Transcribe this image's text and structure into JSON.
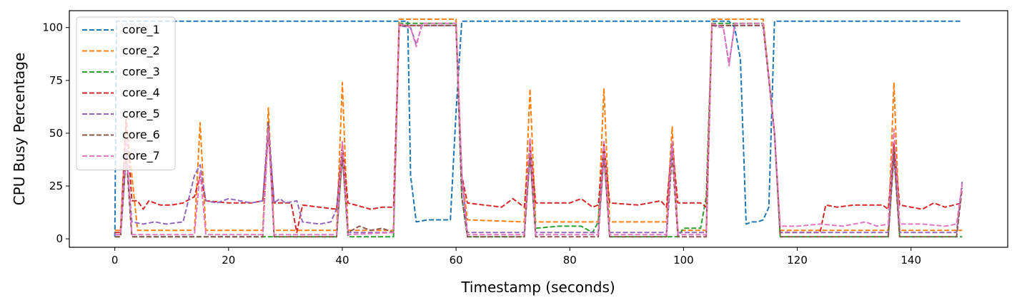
{
  "chart_data": {
    "type": "line",
    "title": "",
    "xlabel": "Timestamp (seconds)",
    "ylabel": "CPU Busy Percentage",
    "xlim": [
      -8,
      157
    ],
    "ylim": [
      -4,
      108
    ],
    "xticks": [
      0,
      20,
      40,
      60,
      80,
      100,
      120,
      140
    ],
    "yticks": [
      0,
      25,
      50,
      75,
      100
    ],
    "grid": false,
    "legend": "top-left",
    "series": [
      {
        "name": "core_1",
        "color": "#1f77b4",
        "linestyle": "dashed",
        "points": [
          [
            0,
            1
          ],
          [
            0.3,
            103
          ],
          [
            50,
            103
          ],
          [
            51.5,
            103
          ],
          [
            52,
            30
          ],
          [
            53,
            8
          ],
          [
            55,
            9
          ],
          [
            59,
            9
          ],
          [
            60,
            60
          ],
          [
            61,
            103
          ],
          [
            108,
            103
          ],
          [
            109,
            100
          ],
          [
            110,
            85
          ],
          [
            111,
            7
          ],
          [
            112,
            8
          ],
          [
            113,
            8
          ],
          [
            114,
            9
          ],
          [
            115,
            15
          ],
          [
            116,
            103
          ],
          [
            149,
            103
          ]
        ]
      },
      {
        "name": "core_2",
        "color": "#ff7f0e",
        "linestyle": "dashed",
        "points": [
          [
            0,
            4
          ],
          [
            1,
            4
          ],
          [
            2,
            55
          ],
          [
            3,
            30
          ],
          [
            4,
            4
          ],
          [
            14,
            4
          ],
          [
            15,
            55
          ],
          [
            16,
            4
          ],
          [
            26,
            4
          ],
          [
            27,
            62
          ],
          [
            28,
            4
          ],
          [
            39,
            4
          ],
          [
            40,
            74
          ],
          [
            41,
            4
          ],
          [
            49,
            4
          ],
          [
            50,
            104
          ],
          [
            60,
            104
          ],
          [
            61,
            30
          ],
          [
            62,
            9
          ],
          [
            72,
            8
          ],
          [
            73,
            71
          ],
          [
            74,
            8
          ],
          [
            85,
            8
          ],
          [
            86,
            71
          ],
          [
            87,
            8
          ],
          [
            97,
            8
          ],
          [
            98,
            53
          ],
          [
            99,
            4
          ],
          [
            104,
            4
          ],
          [
            105,
            104
          ],
          [
            114,
            104
          ],
          [
            116,
            50
          ],
          [
            117,
            4
          ],
          [
            136,
            4
          ],
          [
            137,
            74
          ],
          [
            138,
            4
          ],
          [
            149,
            4
          ]
        ]
      },
      {
        "name": "core_3",
        "color": "#2ca02c",
        "linestyle": "dashed",
        "points": [
          [
            0,
            1
          ],
          [
            1,
            1
          ],
          [
            2,
            40
          ],
          [
            3,
            1
          ],
          [
            39,
            1
          ],
          [
            40,
            40
          ],
          [
            41,
            1
          ],
          [
            49,
            1
          ],
          [
            50,
            102
          ],
          [
            60,
            102
          ],
          [
            61,
            20
          ],
          [
            62,
            1
          ],
          [
            72,
            1
          ],
          [
            73,
            45
          ],
          [
            74,
            5
          ],
          [
            78,
            6
          ],
          [
            82,
            6
          ],
          [
            84,
            3
          ],
          [
            85,
            8
          ],
          [
            86,
            45
          ],
          [
            87,
            1
          ],
          [
            99,
            1
          ],
          [
            100,
            5
          ],
          [
            103,
            5
          ],
          [
            104,
            20
          ],
          [
            105,
            102
          ],
          [
            114,
            102
          ],
          [
            116,
            50
          ],
          [
            117,
            1
          ],
          [
            136,
            1
          ],
          [
            137,
            45
          ],
          [
            138,
            1
          ],
          [
            149,
            1
          ]
        ]
      },
      {
        "name": "core_4",
        "color": "#d62728",
        "linestyle": "dashed",
        "points": [
          [
            0,
            3
          ],
          [
            1,
            3
          ],
          [
            2,
            58
          ],
          [
            3,
            18
          ],
          [
            4,
            18
          ],
          [
            5,
            14
          ],
          [
            6,
            18
          ],
          [
            8,
            16
          ],
          [
            10,
            16
          ],
          [
            12,
            17
          ],
          [
            14,
            20
          ],
          [
            15,
            30
          ],
          [
            16,
            18
          ],
          [
            20,
            17
          ],
          [
            24,
            17
          ],
          [
            26,
            18
          ],
          [
            27,
            50
          ],
          [
            28,
            17
          ],
          [
            31,
            17
          ],
          [
            32,
            3
          ],
          [
            33,
            16
          ],
          [
            36,
            15
          ],
          [
            39,
            14
          ],
          [
            40,
            45
          ],
          [
            41,
            17
          ],
          [
            45,
            14
          ],
          [
            47,
            15
          ],
          [
            49,
            15
          ],
          [
            50,
            101
          ],
          [
            60,
            101
          ],
          [
            61,
            30
          ],
          [
            62,
            17
          ],
          [
            68,
            15
          ],
          [
            70,
            19
          ],
          [
            72,
            15
          ],
          [
            73,
            45
          ],
          [
            74,
            17
          ],
          [
            80,
            17
          ],
          [
            82,
            19
          ],
          [
            84,
            15
          ],
          [
            85,
            16
          ],
          [
            86,
            45
          ],
          [
            87,
            17
          ],
          [
            92,
            16
          ],
          [
            96,
            18
          ],
          [
            97,
            15
          ],
          [
            98,
            45
          ],
          [
            99,
            17
          ],
          [
            103,
            17
          ],
          [
            104,
            15
          ],
          [
            105,
            101
          ],
          [
            114,
            101
          ],
          [
            116,
            50
          ],
          [
            117,
            3
          ],
          [
            124,
            3
          ],
          [
            125,
            16
          ],
          [
            127,
            15
          ],
          [
            130,
            16
          ],
          [
            133,
            16
          ],
          [
            135,
            16
          ],
          [
            136,
            14
          ],
          [
            137,
            45
          ],
          [
            138,
            16
          ],
          [
            142,
            14
          ],
          [
            144,
            17
          ],
          [
            146,
            15
          ],
          [
            149,
            17
          ]
        ]
      },
      {
        "name": "core_5",
        "color": "#9467bd",
        "linestyle": "dashed",
        "points": [
          [
            0,
            2
          ],
          [
            1,
            2
          ],
          [
            2,
            40
          ],
          [
            3,
            8
          ],
          [
            5,
            7
          ],
          [
            7,
            8
          ],
          [
            9,
            7
          ],
          [
            12,
            8
          ],
          [
            14,
            30
          ],
          [
            15,
            35
          ],
          [
            16,
            18
          ],
          [
            18,
            17
          ],
          [
            20,
            19
          ],
          [
            24,
            17
          ],
          [
            26,
            18
          ],
          [
            27,
            55
          ],
          [
            28,
            17
          ],
          [
            29,
            19
          ],
          [
            30,
            17
          ],
          [
            32,
            18
          ],
          [
            33,
            8
          ],
          [
            36,
            7
          ],
          [
            38,
            8
          ],
          [
            39,
            14
          ],
          [
            40,
            40
          ],
          [
            41,
            3
          ],
          [
            49,
            3
          ],
          [
            50,
            101
          ],
          [
            52,
            100
          ],
          [
            53,
            92
          ],
          [
            54,
            101
          ],
          [
            60,
            101
          ],
          [
            61,
            30
          ],
          [
            62,
            3
          ],
          [
            72,
            3
          ],
          [
            73,
            40
          ],
          [
            74,
            3
          ],
          [
            85,
            3
          ],
          [
            86,
            40
          ],
          [
            87,
            3
          ],
          [
            97,
            3
          ],
          [
            98,
            45
          ],
          [
            99,
            3
          ],
          [
            104,
            3
          ],
          [
            105,
            101
          ],
          [
            107,
            100
          ],
          [
            108,
            83
          ],
          [
            109,
            101
          ],
          [
            114,
            101
          ],
          [
            116,
            50
          ],
          [
            117,
            3
          ],
          [
            136,
            3
          ],
          [
            137,
            40
          ],
          [
            138,
            3
          ],
          [
            148,
            3
          ],
          [
            149,
            27
          ]
        ]
      },
      {
        "name": "core_6",
        "color": "#8c564b",
        "linestyle": "dashed",
        "points": [
          [
            0,
            1
          ],
          [
            1,
            1
          ],
          [
            2,
            40
          ],
          [
            3,
            1
          ],
          [
            26,
            1
          ],
          [
            27,
            55
          ],
          [
            28,
            1
          ],
          [
            39,
            1
          ],
          [
            40,
            40
          ],
          [
            41,
            3
          ],
          [
            43,
            6
          ],
          [
            45,
            4
          ],
          [
            47,
            5
          ],
          [
            49,
            3
          ],
          [
            50,
            101
          ],
          [
            60,
            101
          ],
          [
            61,
            20
          ],
          [
            62,
            1
          ],
          [
            72,
            1
          ],
          [
            73,
            40
          ],
          [
            74,
            1
          ],
          [
            85,
            1
          ],
          [
            86,
            40
          ],
          [
            87,
            1
          ],
          [
            97,
            1
          ],
          [
            98,
            40
          ],
          [
            99,
            1
          ],
          [
            104,
            1
          ],
          [
            105,
            101
          ],
          [
            114,
            101
          ],
          [
            116,
            50
          ],
          [
            117,
            1
          ],
          [
            136,
            1
          ],
          [
            137,
            40
          ],
          [
            138,
            1
          ],
          [
            148,
            1
          ],
          [
            149,
            24
          ]
        ]
      },
      {
        "name": "core_7",
        "color": "#e377c2",
        "linestyle": "dashed",
        "points": [
          [
            0,
            2
          ],
          [
            1,
            2
          ],
          [
            2,
            48
          ],
          [
            3,
            2
          ],
          [
            14,
            2
          ],
          [
            15,
            32
          ],
          [
            16,
            2
          ],
          [
            26,
            2
          ],
          [
            27,
            52
          ],
          [
            28,
            2
          ],
          [
            39,
            2
          ],
          [
            40,
            46
          ],
          [
            41,
            2
          ],
          [
            49,
            3
          ],
          [
            50,
            102
          ],
          [
            52,
            100
          ],
          [
            53,
            91
          ],
          [
            54,
            102
          ],
          [
            60,
            102
          ],
          [
            61,
            30
          ],
          [
            62,
            2
          ],
          [
            72,
            2
          ],
          [
            73,
            48
          ],
          [
            74,
            2
          ],
          [
            85,
            2
          ],
          [
            86,
            46
          ],
          [
            87,
            2
          ],
          [
            97,
            2
          ],
          [
            98,
            46
          ],
          [
            99,
            2
          ],
          [
            104,
            2
          ],
          [
            105,
            102
          ],
          [
            107,
            100
          ],
          [
            108,
            82
          ],
          [
            109,
            102
          ],
          [
            114,
            102
          ],
          [
            116,
            50
          ],
          [
            117,
            6
          ],
          [
            120,
            6
          ],
          [
            124,
            7
          ],
          [
            128,
            6
          ],
          [
            132,
            8
          ],
          [
            134,
            6
          ],
          [
            136,
            7
          ],
          [
            137,
            52
          ],
          [
            138,
            7
          ],
          [
            142,
            7
          ],
          [
            146,
            6
          ],
          [
            148,
            7
          ],
          [
            149,
            26
          ]
        ]
      }
    ]
  }
}
